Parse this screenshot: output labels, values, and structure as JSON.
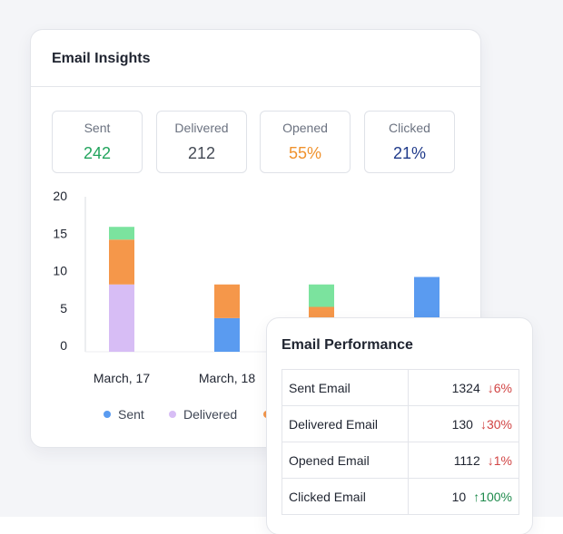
{
  "insights": {
    "title": "Email Insights",
    "stats": [
      {
        "label": "Sent",
        "value": "242",
        "color": "#22a45d"
      },
      {
        "label": "Delivered",
        "value": "212",
        "color": "#444a55"
      },
      {
        "label": "Opened",
        "value": "55%",
        "color": "#f0922d"
      },
      {
        "label": "Clicked",
        "value": "21%",
        "color": "#1f3a8a"
      }
    ],
    "legend": [
      {
        "label": "Sent",
        "color": "#5a9bf0"
      },
      {
        "label": "Delivered",
        "color": "#d7bdf5"
      }
    ]
  },
  "chart_data": {
    "type": "bar",
    "stacked": true,
    "categories": [
      "March, 17",
      "March, 18",
      "",
      ""
    ],
    "yticks": [
      0,
      5,
      10,
      15,
      20
    ],
    "ylim": [
      0,
      20
    ],
    "series": [
      {
        "name": "Sent",
        "color": "#5a9bf0",
        "values": [
          0,
          4.5,
          0,
          10
        ]
      },
      {
        "name": "Delivered",
        "color": "#d7bdf5",
        "values": [
          9,
          0,
          0.5,
          0
        ]
      },
      {
        "color": "#f5974a",
        "values": [
          6,
          4.5,
          5.5,
          0
        ]
      },
      {
        "color": "#7be39e",
        "values": [
          1.7,
          0,
          3,
          0
        ]
      }
    ],
    "grid": false
  },
  "performance": {
    "title": "Email Performance",
    "rows": [
      {
        "metric": "Sent Email",
        "value": "1324",
        "change": "↓6%",
        "direction": "down"
      },
      {
        "metric": "Delivered Email",
        "value": "130",
        "change": "↓30%",
        "direction": "down"
      },
      {
        "metric": "Opened Email",
        "value": "1112",
        "change": "↓1%",
        "direction": "down"
      },
      {
        "metric": "Clicked Email",
        "value": "10",
        "change": "↑100%",
        "direction": "up"
      }
    ]
  }
}
